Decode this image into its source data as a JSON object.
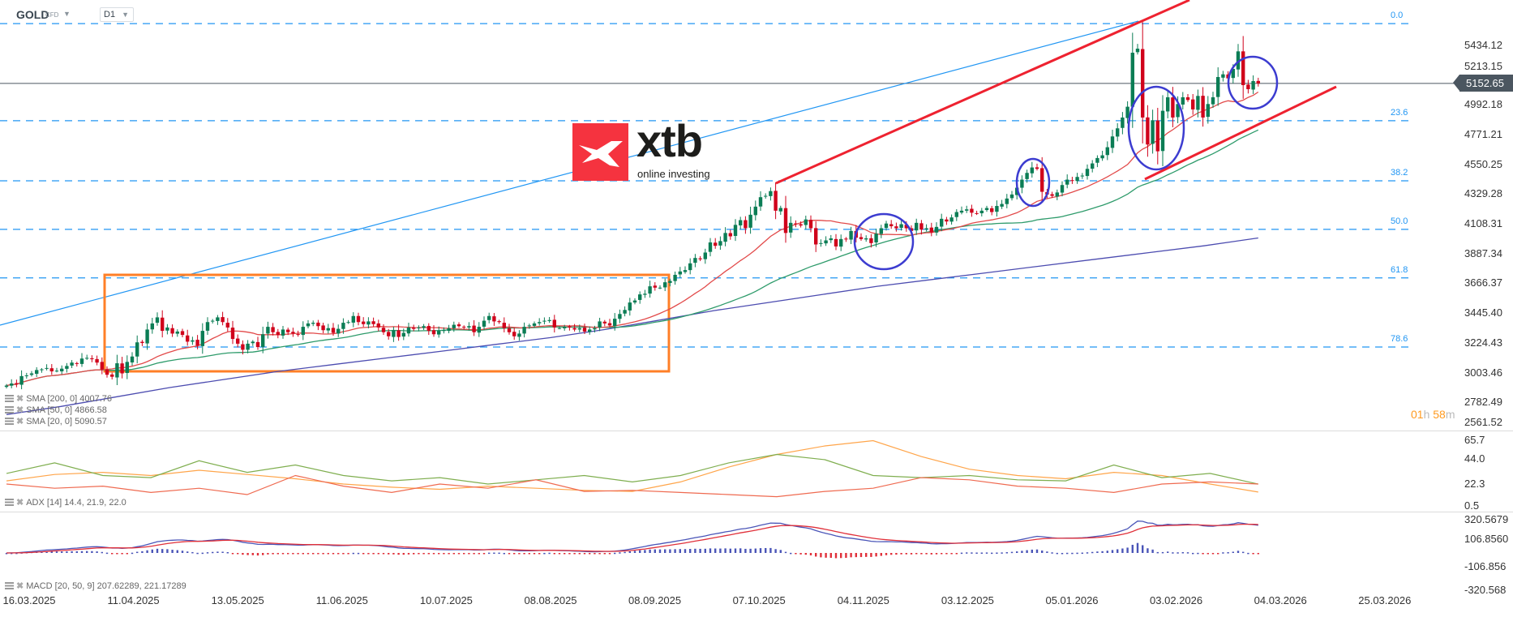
{
  "header": {
    "symbol": "GOLD",
    "instrument_type": "CFD",
    "timeframe": "D1"
  },
  "logo": {
    "brand": "xtb",
    "tagline": "online investing",
    "color": "#f5333f"
  },
  "price_axis": [
    "5434.12",
    "5213.15",
    "4992.18",
    "4771.21",
    "4550.25",
    "4329.28",
    "4108.31",
    "3887.34",
    "3666.37",
    "3445.40",
    "3224.43",
    "3003.46",
    "2782.49",
    "2561.52"
  ],
  "current_price": "5152.65",
  "timer": {
    "hours": "01",
    "h": "h",
    "minutes": "58",
    "m": "m"
  },
  "indicators": {
    "sma200": "SMA [200,  0] 4007.76",
    "sma50": "SMA [50,  0] 4866.58",
    "sma20": "SMA [20,  0] 5090.57",
    "adx": "ADX [14]  14.4,  21.9,  22.0",
    "macd": "MACD  [20,  50, 9] 207.62289,   221.17289"
  },
  "adx_axis": [
    "65.7",
    "44.0",
    "22.3",
    "0.5"
  ],
  "macd_axis": [
    "320.5679",
    "106.8560",
    "-106.856",
    "-320.568"
  ],
  "dates": [
    "16.03.2025",
    "11.04.2025",
    "13.05.2025",
    "11.06.2025",
    "10.07.2025",
    "08.08.2025",
    "08.09.2025",
    "07.10.2025",
    "04.11.2025",
    "03.12.2025",
    "05.01.2026",
    "03.02.2026",
    "04.03.2026",
    "25.03.2026"
  ],
  "colors": {
    "up": "#0b7d55",
    "down": "#d0021b",
    "sma20": "#e24a4a",
    "sma50": "#2e9b6b",
    "sma200": "#4c4cb0",
    "fib": "#2196f3",
    "trendline": "#ee2230",
    "box": "#ff7f27",
    "circle": "#3c3cd0",
    "adx": "#ffa54a",
    "plus_di": "#7fae4f",
    "minus_di": "#ef6a50",
    "macd": "#4a55b8",
    "signal": "#e0303a"
  },
  "chart_data": {
    "type": "candlestick",
    "title": "GOLD",
    "ylim": [
      2561.52,
      5600
    ],
    "x_range": [
      "16.03.2025",
      "25.03.2026"
    ],
    "grid": false,
    "closes": [
      2915,
      2930,
      2925,
      2985,
      2990,
      3005,
      3030,
      3035,
      3045,
      3020,
      3025,
      3040,
      3060,
      3085,
      3075,
      3115,
      3120,
      3110,
      3085,
      3035,
      2995,
      2980,
      3080,
      3005,
      3090,
      3130,
      3235,
      3230,
      3330,
      3375,
      3420,
      3320,
      3345,
      3300,
      3315,
      3290,
      3240,
      3250,
      3210,
      3320,
      3385,
      3395,
      3420,
      3385,
      3345,
      3260,
      3225,
      3180,
      3225,
      3240,
      3200,
      3295,
      3350,
      3310,
      3290,
      3330,
      3310,
      3300,
      3290,
      3350,
      3375,
      3380,
      3355,
      3325,
      3340,
      3305,
      3335,
      3380,
      3385,
      3430,
      3385,
      3370,
      3390,
      3370,
      3345,
      3310,
      3280,
      3325,
      3275,
      3305,
      3345,
      3335,
      3345,
      3355,
      3320,
      3295,
      3320,
      3325,
      3340,
      3365,
      3355,
      3345,
      3355,
      3310,
      3350,
      3395,
      3430,
      3390,
      3385,
      3340,
      3310,
      3280,
      3300,
      3350,
      3360,
      3375,
      3385,
      3395,
      3400,
      3345,
      3340,
      3350,
      3345,
      3330,
      3340,
      3315,
      3330,
      3340,
      3390,
      3375,
      3360,
      3410,
      3445,
      3475,
      3530,
      3545,
      3590,
      3595,
      3650,
      3640,
      3640,
      3680,
      3690,
      3735,
      3760,
      3770,
      3820,
      3860,
      3850,
      3900,
      3975,
      3950,
      3985,
      4045,
      4020,
      4105,
      4140,
      4080,
      4180,
      4240,
      4310,
      4320,
      4355,
      4210,
      4230,
      4045,
      4120,
      4110,
      4100,
      4145,
      4080,
      3960,
      3970,
      3990,
      4005,
      3945,
      4000,
      4000,
      4060,
      4010,
      4000,
      4005,
      3970,
      4040,
      4080,
      4115,
      4095,
      4080,
      4110,
      4080,
      4060,
      4120,
      4070,
      4080,
      4050,
      4090,
      4150,
      4130,
      4160,
      4200,
      4210,
      4220,
      4195,
      4190,
      4210,
      4230,
      4200,
      4245,
      4260,
      4300,
      4330,
      4380,
      4440,
      4490,
      4530,
      4520,
      4350,
      4330,
      4320,
      4345,
      4400,
      4440,
      4430,
      4460,
      4470,
      4520,
      4560,
      4600,
      4620,
      4680,
      4760,
      4820,
      4900,
      4980,
      5380,
      5410,
      4900,
      4700,
      4880,
      4650,
      4950,
      5050,
      4900,
      5000,
      5050,
      5030,
      4960,
      5060,
      4900,
      5000,
      5050,
      5200,
      5220,
      5190,
      5260,
      5390,
      5140,
      5110,
      5170,
      5152.65
    ],
    "sma200": [
      2700,
      2760,
      2830,
      2900,
      2960,
      3020,
      3070,
      3120,
      3170,
      3220,
      3270,
      3330,
      3400,
      3470,
      3530,
      3590,
      3650,
      3700,
      3750,
      3800,
      3850,
      3900,
      3950,
      4007.76
    ],
    "adx": {
      "range": [
        0.5,
        65.7
      ],
      "adx": [
        25,
        31,
        33,
        30,
        35,
        31,
        27,
        22,
        19,
        17,
        20,
        18,
        16,
        15,
        24,
        38,
        50,
        58,
        63,
        48,
        36,
        30,
        27,
        33,
        30,
        22,
        14.4
      ],
      "plus_di": [
        32,
        42,
        30,
        28,
        44,
        33,
        40,
        30,
        25,
        28,
        22,
        26,
        30,
        24,
        30,
        42,
        50,
        45,
        30,
        28,
        30,
        26,
        25,
        40,
        28,
        32,
        21.9
      ],
      "minus_di": [
        22,
        18,
        20,
        14,
        18,
        12,
        30,
        20,
        14,
        22,
        18,
        26,
        15,
        16,
        14,
        12,
        10,
        15,
        18,
        28,
        26,
        20,
        18,
        14,
        22,
        24,
        22.0
      ]
    },
    "macd": {
      "range": [
        -320.568,
        320.5679
      ],
      "fast": 20,
      "slow": 50,
      "signal": 9
    },
    "fibonacci": {
      "high": 5595.6,
      "low": 2548,
      "levels": [
        "0.0",
        "23.6",
        "38.2",
        "50.0",
        "61.8",
        "78.6"
      ]
    }
  }
}
